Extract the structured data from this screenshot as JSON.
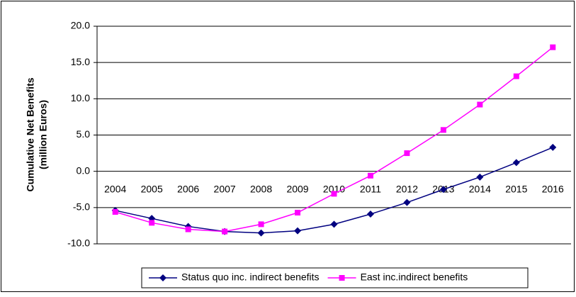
{
  "chart_data": {
    "type": "line",
    "y_label": [
      "Cumulative Net Benefits",
      "(million Euros)"
    ],
    "categories": [
      "2004",
      "2005",
      "2006",
      "2007",
      "2008",
      "2009",
      "2010",
      "2011",
      "2012",
      "2013",
      "2014",
      "2015",
      "2016"
    ],
    "series": [
      {
        "name": "Status quo inc. indirect benefits",
        "color": "#000080",
        "marker": "diamond",
        "values": [
          -5.4,
          -6.5,
          -7.6,
          -8.3,
          -8.5,
          -8.2,
          -7.3,
          -5.9,
          -4.3,
          -2.5,
          -0.8,
          1.2,
          3.3
        ]
      },
      {
        "name": "East inc.indirect benefits",
        "color": "#ff00ff",
        "marker": "square",
        "values": [
          -5.6,
          -7.1,
          -8.0,
          -8.3,
          -7.3,
          -5.7,
          -3.1,
          -0.6,
          2.5,
          5.7,
          9.2,
          13.1,
          17.1
        ]
      }
    ],
    "ylim": [
      -10,
      20
    ],
    "yticks": [
      {
        "value": -10,
        "label": "-10.0"
      },
      {
        "value": -5,
        "label": "-5.0"
      },
      {
        "value": 0,
        "label": "0.0"
      },
      {
        "value": 5,
        "label": "5.0"
      },
      {
        "value": 10,
        "label": "10.0"
      },
      {
        "value": 15,
        "label": "15.0"
      },
      {
        "value": 20,
        "label": "20.0"
      }
    ],
    "grid": true,
    "legend": "bottom"
  }
}
